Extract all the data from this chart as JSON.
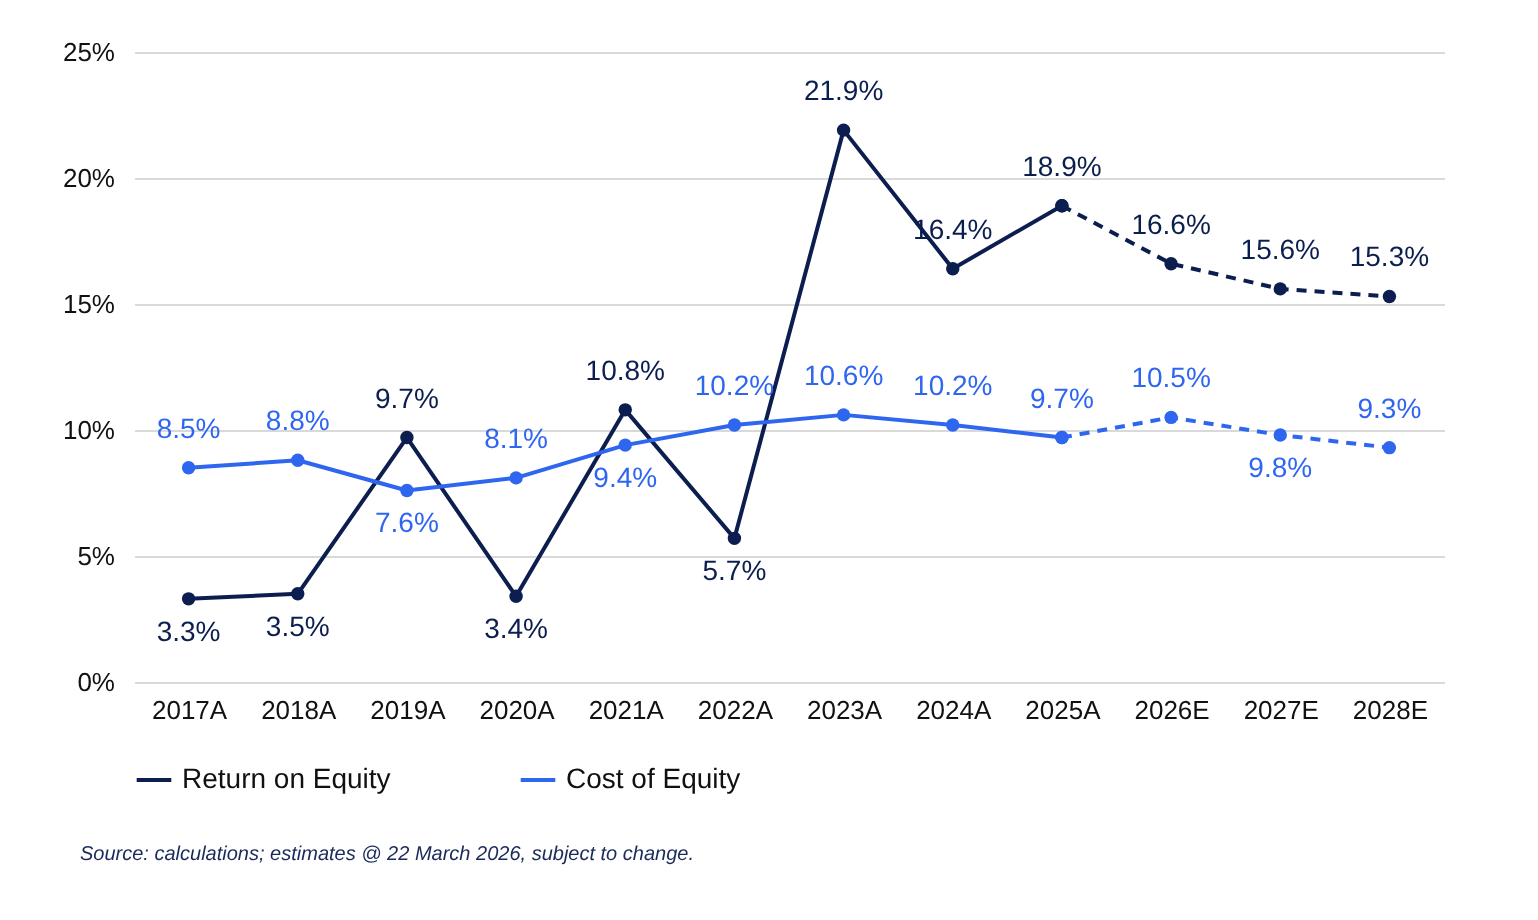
{
  "chart_data": {
    "type": "line",
    "categories": [
      "2017A",
      "2018A",
      "2019A",
      "2020A",
      "2021A",
      "2022A",
      "2023A",
      "2024A",
      "2025A",
      "2026E",
      "2027E",
      "2028E"
    ],
    "series": [
      {
        "name": "Return on Equity",
        "color": "#0c1e4f",
        "line_style": "solid",
        "values": [
          3.3,
          3.5,
          9.7,
          3.4,
          10.8,
          5.7,
          21.9,
          16.4,
          18.9,
          null,
          null,
          null
        ],
        "value_labels": [
          "3.3%",
          "3.5%",
          "9.7%",
          "3.4%",
          "10.8%",
          "5.7%",
          "21.9%",
          "16.4%",
          "18.9%",
          null,
          null,
          null
        ]
      },
      {
        "name": "Cost of Equity",
        "color": "#2f66f0",
        "line_style": "solid",
        "values": [
          8.5,
          8.8,
          7.6,
          8.1,
          9.4,
          10.2,
          10.6,
          10.2,
          9.7,
          null,
          null,
          null
        ],
        "value_labels": [
          "8.5%",
          "8.8%",
          "7.6%",
          "8.1%",
          "9.4%",
          "10.2%",
          "10.6%",
          "10.2%",
          "9.7%",
          null,
          null,
          null
        ]
      },
      {
        "color": "#0c1e4f",
        "line_style": "dashed",
        "values": [
          null,
          null,
          null,
          null,
          null,
          null,
          null,
          null,
          18.9,
          16.6,
          15.6,
          15.3
        ],
        "value_labels": [
          null,
          null,
          null,
          null,
          null,
          null,
          null,
          null,
          null,
          "16.6%",
          "15.6%",
          "15.3%"
        ]
      },
      {
        "color": "#2f66f0",
        "line_style": "dashed",
        "values": [
          null,
          null,
          null,
          null,
          null,
          null,
          null,
          null,
          9.7,
          10.5,
          9.8,
          9.3
        ],
        "value_labels": [
          null,
          null,
          null,
          null,
          null,
          null,
          null,
          null,
          null,
          "10.5%",
          "9.8%",
          "9.3%"
        ]
      }
    ],
    "ylim": [
      0,
      25
    ],
    "yticks": [
      {
        "value": 0,
        "label": "0%"
      },
      {
        "value": 5,
        "label": "5%"
      },
      {
        "value": 10,
        "label": "10%"
      },
      {
        "value": 15,
        "label": "15%"
      },
      {
        "value": 20,
        "label": "20%"
      },
      {
        "value": 25,
        "label": "25%"
      }
    ],
    "grid": "y",
    "legend": "bottom",
    "marker": "circle",
    "annotations": [
      "Source: calculations; estimates @ 22 March 2026, subject to change."
    ]
  }
}
